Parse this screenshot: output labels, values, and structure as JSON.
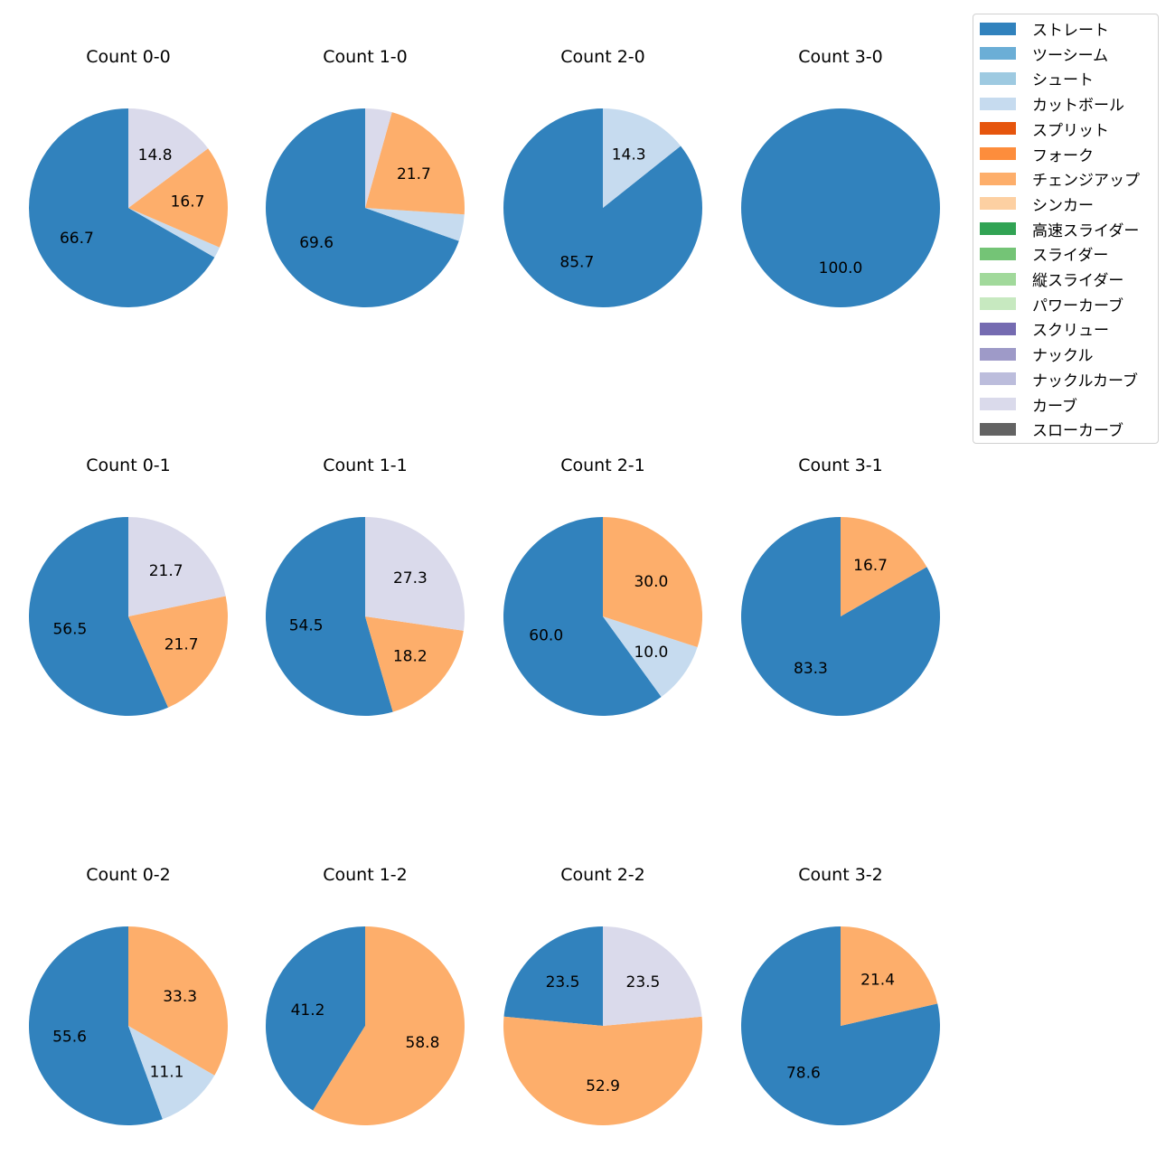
{
  "chart_data": {
    "type": "pie",
    "legend": {
      "position": "top-right",
      "entries": [
        {
          "name": "ストレート",
          "color": "#3182bd"
        },
        {
          "name": "ツーシーム",
          "color": "#6baed6"
        },
        {
          "name": "シュート",
          "color": "#9ecae1"
        },
        {
          "name": "カットボール",
          "color": "#c6dbef"
        },
        {
          "name": "スプリット",
          "color": "#e6550d"
        },
        {
          "name": "フォーク",
          "color": "#fd8d3c"
        },
        {
          "name": "チェンジアップ",
          "color": "#fdae6b"
        },
        {
          "name": "シンカー",
          "color": "#fdd0a2"
        },
        {
          "name": "高速スライダー",
          "color": "#31a354"
        },
        {
          "name": "スライダー",
          "color": "#74c476"
        },
        {
          "name": "縦スライダー",
          "color": "#a1d99b"
        },
        {
          "name": "パワーカーブ",
          "color": "#c7e9c0"
        },
        {
          "name": "スクリュー",
          "color": "#756bb1"
        },
        {
          "name": "ナックル",
          "color": "#9e9ac8"
        },
        {
          "name": "ナックルカーブ",
          "color": "#bcbddc"
        },
        {
          "name": "カーブ",
          "color": "#dadaeb"
        },
        {
          "name": "スローカーブ",
          "color": "#636363"
        }
      ]
    },
    "charts": [
      {
        "title": "Count 0-0",
        "slices": [
          {
            "category": "ストレート",
            "value": 66.7,
            "label": "66.7"
          },
          {
            "category": "カットボール",
            "value": 1.8,
            "label": ""
          },
          {
            "category": "チェンジアップ",
            "value": 16.7,
            "label": "16.7"
          },
          {
            "category": "カーブ",
            "value": 14.8,
            "label": "14.8"
          }
        ]
      },
      {
        "title": "Count 1-0",
        "slices": [
          {
            "category": "ストレート",
            "value": 69.6,
            "label": "69.6"
          },
          {
            "category": "カットボール",
            "value": 4.35,
            "label": ""
          },
          {
            "category": "チェンジアップ",
            "value": 21.7,
            "label": "21.7"
          },
          {
            "category": "カーブ",
            "value": 4.35,
            "label": ""
          }
        ]
      },
      {
        "title": "Count 2-0",
        "slices": [
          {
            "category": "ストレート",
            "value": 85.7,
            "label": "85.7"
          },
          {
            "category": "カットボール",
            "value": 14.3,
            "label": "14.3"
          }
        ]
      },
      {
        "title": "Count 3-0",
        "slices": [
          {
            "category": "ストレート",
            "value": 100.0,
            "label": "100.0"
          }
        ]
      },
      {
        "title": "Count 0-1",
        "slices": [
          {
            "category": "ストレート",
            "value": 56.5,
            "label": "56.5"
          },
          {
            "category": "チェンジアップ",
            "value": 21.7,
            "label": "21.7"
          },
          {
            "category": "カーブ",
            "value": 21.7,
            "label": "21.7"
          }
        ]
      },
      {
        "title": "Count 1-1",
        "slices": [
          {
            "category": "ストレート",
            "value": 54.5,
            "label": "54.5"
          },
          {
            "category": "チェンジアップ",
            "value": 18.2,
            "label": "18.2"
          },
          {
            "category": "カーブ",
            "value": 27.3,
            "label": "27.3"
          }
        ]
      },
      {
        "title": "Count 2-1",
        "slices": [
          {
            "category": "ストレート",
            "value": 60.0,
            "label": "60.0"
          },
          {
            "category": "カットボール",
            "value": 10.0,
            "label": "10.0"
          },
          {
            "category": "チェンジアップ",
            "value": 30.0,
            "label": "30.0"
          }
        ]
      },
      {
        "title": "Count 3-1",
        "slices": [
          {
            "category": "ストレート",
            "value": 83.3,
            "label": "83.3"
          },
          {
            "category": "チェンジアップ",
            "value": 16.7,
            "label": "16.7"
          }
        ]
      },
      {
        "title": "Count 0-2",
        "slices": [
          {
            "category": "ストレート",
            "value": 55.6,
            "label": "55.6"
          },
          {
            "category": "カットボール",
            "value": 11.1,
            "label": "11.1"
          },
          {
            "category": "チェンジアップ",
            "value": 33.3,
            "label": "33.3"
          }
        ]
      },
      {
        "title": "Count 1-2",
        "slices": [
          {
            "category": "ストレート",
            "value": 41.2,
            "label": "41.2"
          },
          {
            "category": "チェンジアップ",
            "value": 58.8,
            "label": "58.8"
          }
        ]
      },
      {
        "title": "Count 2-2",
        "slices": [
          {
            "category": "ストレート",
            "value": 23.5,
            "label": "23.5"
          },
          {
            "category": "チェンジアップ",
            "value": 52.9,
            "label": "52.9"
          },
          {
            "category": "カーブ",
            "value": 23.5,
            "label": "23.5"
          }
        ]
      },
      {
        "title": "Count 3-2",
        "slices": [
          {
            "category": "ストレート",
            "value": 78.6,
            "label": "78.6"
          },
          {
            "category": "チェンジアップ",
            "value": 21.4,
            "label": "21.4"
          }
        ]
      }
    ]
  }
}
